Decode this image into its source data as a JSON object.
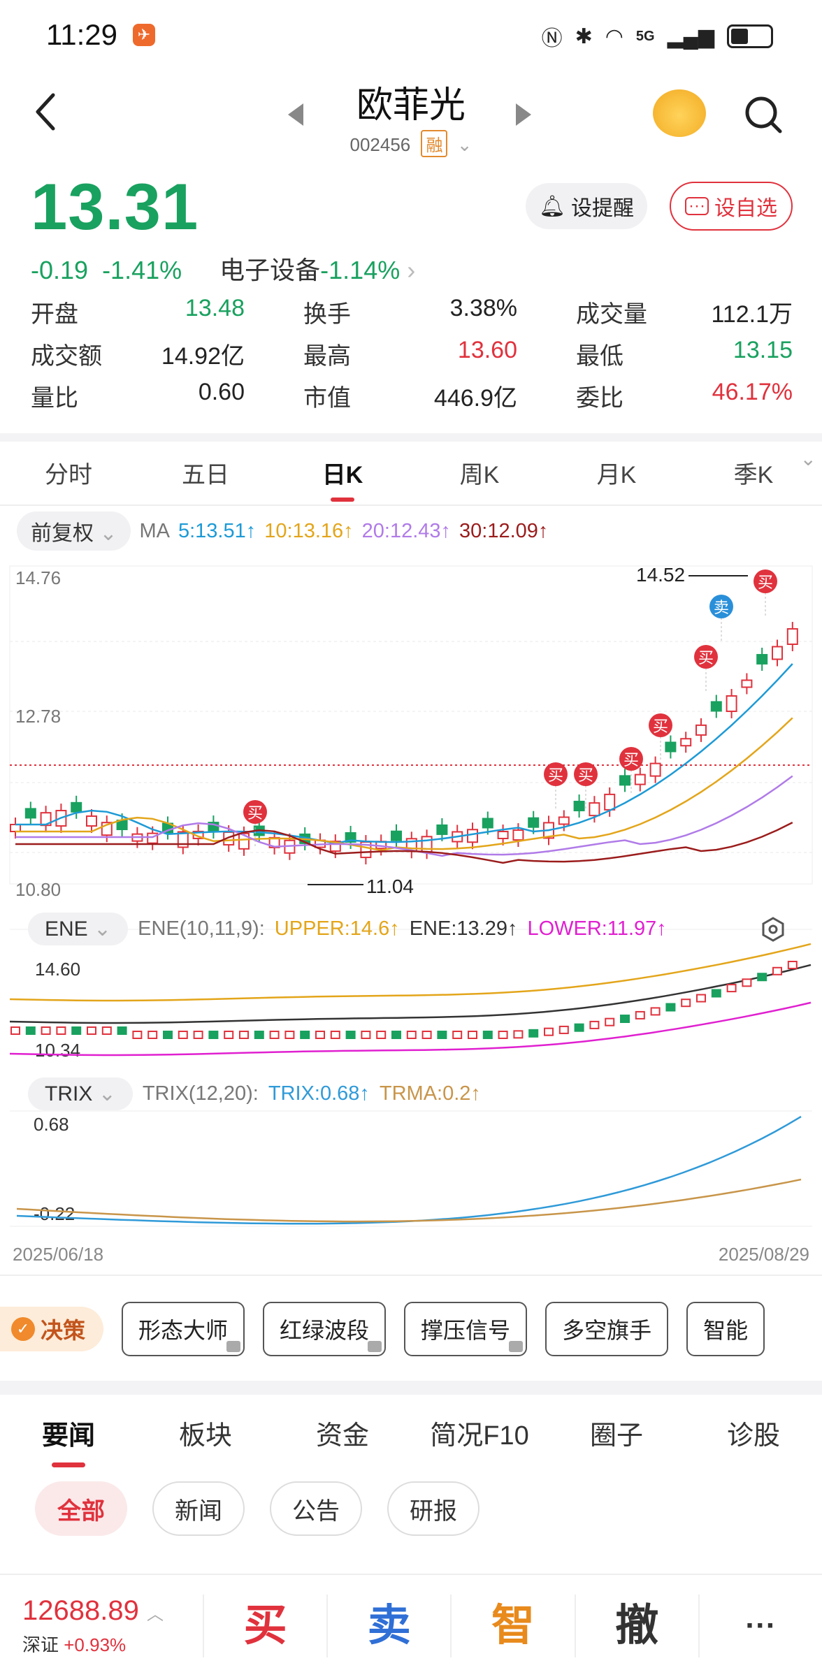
{
  "status": {
    "time": "11:29",
    "network": "5G"
  },
  "header": {
    "title": "欧菲光",
    "code": "002456",
    "badge": "融"
  },
  "quote": {
    "price": "13.31",
    "change": "-0.19",
    "change_pct": "-1.41%",
    "sector": "电子设备",
    "sector_change": "-1.14%",
    "alert_label": "设提醒",
    "watch_label": "设自选"
  },
  "stats": [
    [
      {
        "label": "开盘",
        "value": "13.48"
      },
      {
        "label": "换手",
        "value": "3.38%"
      },
      {
        "label": "成交量",
        "value": "112.1万"
      }
    ],
    [
      {
        "label": "成交额",
        "value": "14.92亿"
      },
      {
        "label": "最高",
        "value": "13.60"
      },
      {
        "label": "最低",
        "value": "13.15"
      }
    ],
    [
      {
        "label": "量比",
        "value": "0.60"
      },
      {
        "label": "市值",
        "value": "446.9亿"
      },
      {
        "label": "委比",
        "value": "46.17%"
      }
    ]
  ],
  "period_tabs": [
    "分时",
    "五日",
    "日K",
    "周K",
    "月K",
    "季K"
  ],
  "ma_legend": {
    "adjust": "前复权",
    "label": "MA",
    "ma5": "5:13.51",
    "ma10": "10:13.16",
    "ma20": "20:12.43",
    "ma30": "30:12.09"
  },
  "ene_legend": {
    "name": "ENE",
    "params": "ENE(10,11,9):",
    "upper": "UPPER:14.6",
    "ene": "ENE:13.29",
    "lower": "LOWER:11.97"
  },
  "trix_legend": {
    "name": "TRIX",
    "params": "TRIX(12,20):",
    "trix": "TRIX:0.68",
    "trma": "TRMA:0.2"
  },
  "chart_labels": {
    "main_top": "14.76",
    "main_mid": "12.78",
    "main_bottom": "10.80",
    "high_marker": "14.52",
    "low_marker": "11.04",
    "buy": "买",
    "sell": "卖",
    "ene_top": "14.60",
    "ene_bottom": "10.34",
    "trix_top": "0.68",
    "trix_bottom": "-0.22"
  },
  "dates": {
    "start": "2025/06/18",
    "end": "2025/08/29"
  },
  "strategy": {
    "badge": "决策",
    "items": [
      "形态大师",
      "红绿波段",
      "撑压信号",
      "多空旗手",
      "智能"
    ]
  },
  "news_tabs": [
    "要闻",
    "板块",
    "资金",
    "简况F10",
    "圈子",
    "诊股"
  ],
  "news_filters": [
    "全部",
    "新闻",
    "公告",
    "研报"
  ],
  "bottom_bar": {
    "index_value": "12688.89",
    "index_name": "深证",
    "index_change": "+0.93%",
    "buy": "买",
    "sell": "卖",
    "smart": "智",
    "cancel": "撤",
    "more": "···"
  },
  "colors": {
    "up": "#e0323d",
    "down": "#19a15f",
    "ma5": "#1d9ad6",
    "ma10": "#e3a51a",
    "ma20": "#b07be8",
    "ma30": "#9b1c1c",
    "trix": "#2f9ad8",
    "trma": "#c8954a",
    "ene_upper": "#e3a51a",
    "ene_mid": "#333333",
    "ene_lower": "#e020d0"
  }
}
